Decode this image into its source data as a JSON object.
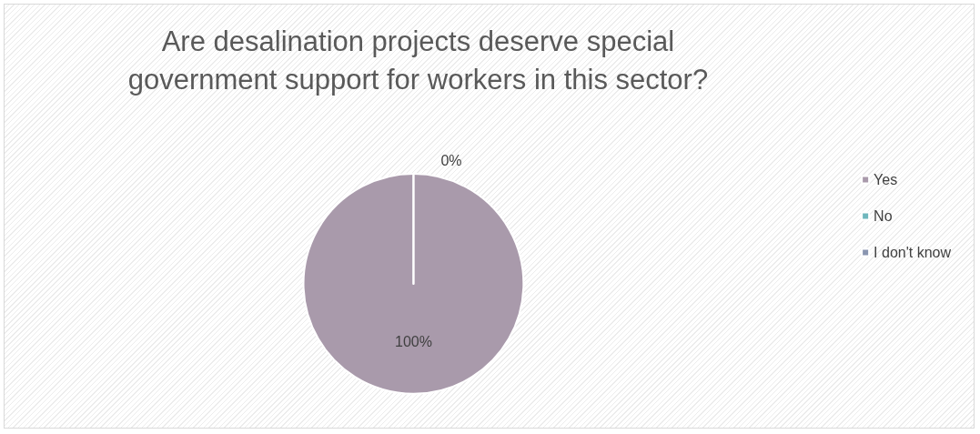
{
  "chart_data": {
    "type": "pie",
    "title": "Are desalination projects deserve special\ngovernment support for workers in this sector?",
    "categories": [
      "Yes",
      "No",
      "I don't know"
    ],
    "values": [
      100,
      0,
      0
    ],
    "colors": [
      "#a99aab",
      "#6fb7bd",
      "#8a95b0"
    ],
    "value_labels": [
      "100%",
      "0%",
      null
    ],
    "legend": "right"
  }
}
